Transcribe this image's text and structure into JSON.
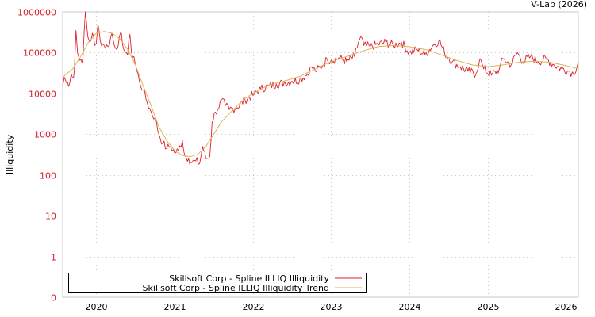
{
  "watermark": "V-Lab (2026)",
  "chart_data": {
    "type": "line",
    "title": "",
    "xlabel": "",
    "ylabel": "Illiquidity",
    "yscale": "log",
    "ylim": [
      0.1,
      1000000
    ],
    "xlim": [
      2019.57,
      2026.16
    ],
    "grid": true,
    "legend_position": "bottom-left",
    "y_ticks": [
      {
        "value": 1000000,
        "label": "1000000"
      },
      {
        "value": 100000,
        "label": "100000"
      },
      {
        "value": 10000,
        "label": "10000"
      },
      {
        "value": 1000,
        "label": "1000"
      },
      {
        "value": 100,
        "label": "100"
      },
      {
        "value": 10,
        "label": "10"
      },
      {
        "value": 1,
        "label": "1"
      },
      {
        "value": 0.1,
        "label": "0"
      }
    ],
    "x_ticks": [
      {
        "value": 2020,
        "label": "2020"
      },
      {
        "value": 2021,
        "label": "2021"
      },
      {
        "value": 2022,
        "label": "2022"
      },
      {
        "value": 2023,
        "label": "2023"
      },
      {
        "value": 2024,
        "label": "2024"
      },
      {
        "value": 2025,
        "label": "2025"
      },
      {
        "value": 2026,
        "label": "2026"
      }
    ],
    "series": [
      {
        "name": "Skillsoft Corp - Spline ILLIQ Illiquidity",
        "color": "#e0202e",
        "x": [
          2019.57,
          2019.59,
          2019.62,
          2019.66,
          2019.68,
          2019.71,
          2019.72,
          2019.74,
          2019.76,
          2019.79,
          2019.83,
          2019.86,
          2019.89,
          2019.92,
          2019.95,
          2019.98,
          2020.0,
          2020.02,
          2020.05,
          2020.1,
          2020.15,
          2020.2,
          2020.23,
          2020.28,
          2020.32,
          2020.35,
          2020.38,
          2020.4,
          2020.43,
          2020.45,
          2020.48,
          2020.52,
          2020.55,
          2020.6,
          2020.65,
          2020.7,
          2020.75,
          2020.8,
          2020.85,
          2020.9,
          2020.95,
          2021.0,
          2021.05,
          2021.1,
          2021.13,
          2021.18,
          2021.22,
          2021.27,
          2021.32,
          2021.36,
          2021.4,
          2021.45,
          2021.48,
          2021.52,
          2021.55,
          2021.6,
          2021.65,
          2021.7,
          2021.8,
          2021.9,
          2022.0,
          2022.1,
          2022.2,
          2022.3,
          2022.4,
          2022.5,
          2022.6,
          2022.7,
          2022.75,
          2022.8,
          2022.9,
          2022.95,
          2023.0,
          2023.1,
          2023.2,
          2023.3,
          2023.35,
          2023.38,
          2023.42,
          2023.5,
          2023.6,
          2023.7,
          2023.8,
          2023.9,
          2024.0,
          2024.1,
          2024.2,
          2024.3,
          2024.38,
          2024.45,
          2024.55,
          2024.65,
          2024.75,
          2024.85,
          2024.9,
          2024.95,
          2025.05,
          2025.15,
          2025.2,
          2025.3,
          2025.38,
          2025.45,
          2025.55,
          2025.65,
          2025.75,
          2025.85,
          2025.95,
          2026.05,
          2026.1,
          2026.16
        ],
        "values": [
          15000,
          25000,
          18000,
          18000,
          30000,
          25000,
          40000,
          350000,
          100000,
          65000,
          75000,
          1000000,
          250000,
          180000,
          300000,
          150000,
          170000,
          500000,
          200000,
          150000,
          140000,
          300000,
          150000,
          150000,
          300000,
          120000,
          100000,
          90000,
          280000,
          100000,
          80000,
          35000,
          20000,
          12000,
          6000,
          3500,
          2500,
          1000,
          600,
          450,
          500,
          350,
          400,
          700,
          300,
          250,
          200,
          220,
          190,
          500,
          250,
          280,
          2000,
          3500,
          4000,
          7000,
          5000,
          4000,
          4500,
          7000,
          9000,
          13000,
          15000,
          17000,
          18000,
          20000,
          22000,
          30000,
          45000,
          35000,
          50000,
          70000,
          65000,
          75000,
          60000,
          80000,
          180000,
          250000,
          150000,
          140000,
          160000,
          180000,
          150000,
          180000,
          100000,
          120000,
          90000,
          150000,
          200000,
          100000,
          60000,
          45000,
          35000,
          30000,
          70000,
          40000,
          28000,
          40000,
          70000,
          50000,
          100000,
          60000,
          80000,
          60000,
          70000,
          50000,
          40000,
          35000,
          30000,
          60000
        ]
      },
      {
        "name": "Skillsoft Corp - Spline ILLIQ Illiquidity Trend",
        "color": "#d9b55a",
        "x": [
          2019.57,
          2019.7,
          2019.8,
          2019.9,
          2020.0,
          2020.1,
          2020.2,
          2020.3,
          2020.4,
          2020.5,
          2020.6,
          2020.7,
          2020.8,
          2020.9,
          2021.0,
          2021.1,
          2021.2,
          2021.3,
          2021.4,
          2021.5,
          2021.6,
          2021.7,
          2021.8,
          2021.9,
          2022.0,
          2022.2,
          2022.4,
          2022.6,
          2022.8,
          2023.0,
          2023.2,
          2023.4,
          2023.6,
          2023.8,
          2024.0,
          2024.2,
          2024.4,
          2024.6,
          2024.8,
          2025.0,
          2025.2,
          2025.4,
          2025.6,
          2025.8,
          2026.0,
          2026.16
        ],
        "values": [
          25000,
          40000,
          80000,
          180000,
          300000,
          330000,
          300000,
          220000,
          120000,
          50000,
          15000,
          5000,
          1500,
          700,
          400,
          300,
          280,
          320,
          500,
          1000,
          2000,
          3200,
          5000,
          7500,
          10000,
          16000,
          20000,
          26000,
          40000,
          60000,
          80000,
          110000,
          140000,
          150000,
          140000,
          120000,
          90000,
          65000,
          50000,
          45000,
          50000,
          58000,
          62000,
          58000,
          48000,
          40000
        ]
      }
    ]
  }
}
